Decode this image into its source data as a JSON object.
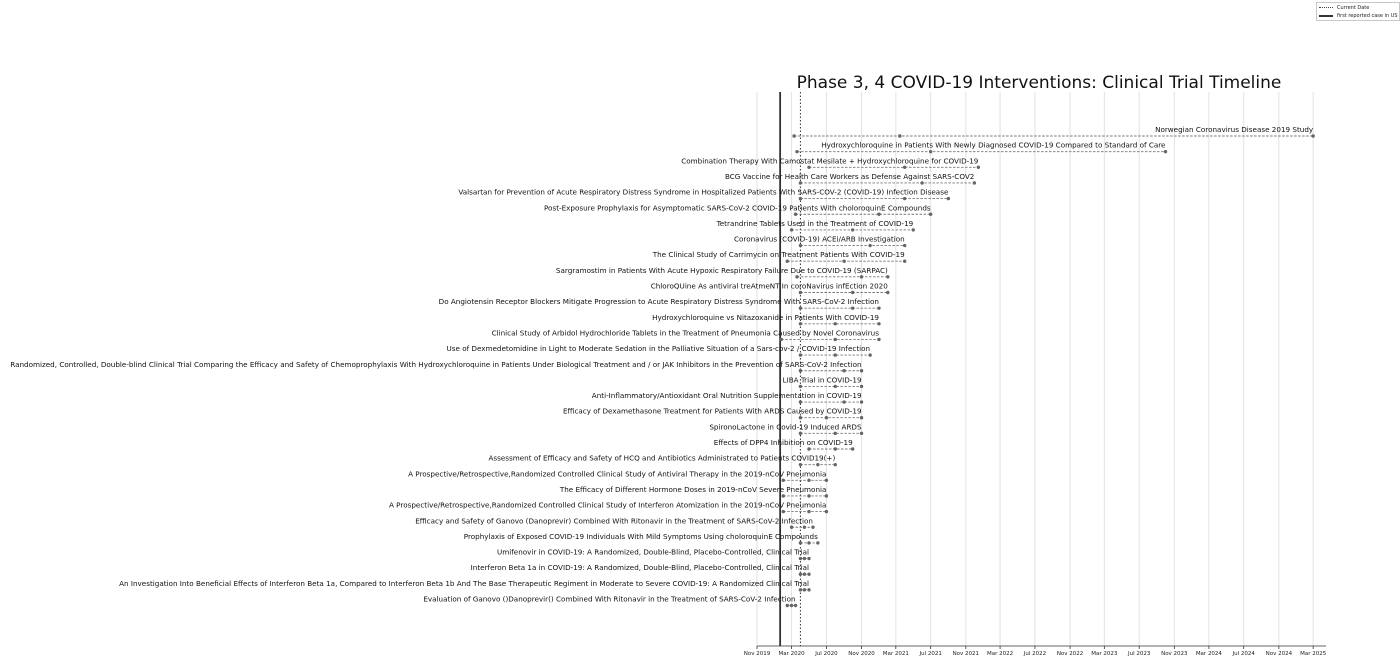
{
  "chart_data": {
    "type": "timeline",
    "title": "Phase 3, 4 COVID-19 Interventions: Clinical Trial Timeline",
    "x_axis": {
      "type": "date",
      "range": [
        "2019-11-01",
        "2025-04-15"
      ],
      "ticks": [
        "Nov 2019",
        "Mar 2020",
        "Jul 2020",
        "Nov 2020",
        "Mar 2021",
        "Jul 2021",
        "Nov 2021",
        "Mar 2022",
        "Jul 2022",
        "Nov 2022",
        "Mar 2023",
        "Jul 2023",
        "Nov 2023",
        "Mar 2024",
        "Jul 2024",
        "Nov 2024",
        "Mar 2025"
      ],
      "grid": true
    },
    "reference_lines": [
      {
        "label": "Current Date",
        "date": "2020-04-01",
        "style": "dotted"
      },
      {
        "label": "first reported case in US",
        "date": "2020-01-21",
        "style": "solid"
      }
    ],
    "legend": {
      "position": "top-right"
    },
    "series": [
      {
        "name": "Norwegian Coronavirus Disease 2019 Study",
        "start": "2020-03-10",
        "mid": "2021-03-15",
        "end": "2025-03-01"
      },
      {
        "name": "Hydroxychloroquine in Patients With Newly Diagnosed COVID-19 Compared to Standard of Care",
        "start": "2020-03-20",
        "mid": "2021-07-01",
        "end": "2023-10-01"
      },
      {
        "name": "Combination Therapy With Camostat Mesilate + Hydroxychloroquine for COVID-19",
        "start": "2020-05-01",
        "mid": "2021-04-01",
        "end": "2021-12-15"
      },
      {
        "name": "BCG Vaccine for Health Care Workers as Defense Against SARS-COV2",
        "start": "2020-04-01",
        "mid": "2021-06-01",
        "end": "2021-12-01"
      },
      {
        "name": "Valsartan for Prevention of Acute Respiratory Distress Syndrome in Hospitalized Patients With SARS-COV-2 (COVID-19) Infection Disease",
        "start": "2020-04-01",
        "mid": "2021-04-01",
        "end": "2021-09-01"
      },
      {
        "name": "Post-Exposure Prophylaxis for Asymptomatic SARS-CoV-2 COVID-19 Patients With choloroquinE Compounds",
        "start": "2020-03-15",
        "mid": "2021-01-01",
        "end": "2021-07-01"
      },
      {
        "name": "Tetrandrine Tablets Used in the Treatment of COVID-19",
        "start": "2020-03-01",
        "mid": "2020-10-01",
        "end": "2021-05-01"
      },
      {
        "name": "Coronavirus (COVID-19) ACEi/ARB Investigation",
        "start": "2020-04-01",
        "mid": "2020-12-01",
        "end": "2021-04-01"
      },
      {
        "name": "The Clinical Study of Carrimycin on Treatment Patients With COVID-19",
        "start": "2020-02-15",
        "mid": "2020-09-01",
        "end": "2021-04-01"
      },
      {
        "name": "Sargramostim in Patients With Acute Hypoxic Respiratory Failure Due to COVID-19 (SARPAC)",
        "start": "2020-03-20",
        "mid": "2020-11-01",
        "end": "2021-02-01"
      },
      {
        "name": "ChloroQUine As antiviral treAtmeNT In coroNavirus infEction 2020",
        "start": "2020-04-01",
        "mid": "2020-10-01",
        "end": "2021-02-01"
      },
      {
        "name": "Do Angiotensin Receptor Blockers Mitigate Progression to Acute Respiratory Distress Syndrome With SARS-CoV-2 Infection",
        "start": "2020-04-01",
        "mid": "2020-10-01",
        "end": "2021-01-01"
      },
      {
        "name": "Hydroxychloroquine vs Nitazoxanide in Patients With COVID-19",
        "start": "2020-04-01",
        "mid": "2020-08-01",
        "end": "2021-01-01"
      },
      {
        "name": "Clinical Study of Arbidol Hydrochloride Tablets in the Treatment of Pneumonia Caused by Novel Coronavirus",
        "start": "2020-01-25",
        "mid": "2020-08-01",
        "end": "2021-01-01"
      },
      {
        "name": "Use of Dexmedetomidine in Light to Moderate Sedation in the Palliative Situation of a Sars-cov-2 / COVID-19 Infection",
        "start": "2020-04-01",
        "mid": "2020-08-01",
        "end": "2020-12-01"
      },
      {
        "name": "Randomized, Controlled, Double-blind Clinical Trial Comparing the Efficacy and Safety of Chemoprophylaxis With Hydroxychloroquine in Patients Under Biological Treatment and / or JAK Inhibitors in the Prevention of SARS-CoV-2 Infection",
        "start": "2020-04-01",
        "mid": "2020-09-01",
        "end": "2020-11-01"
      },
      {
        "name": "LIBA Trial in COVID-19",
        "start": "2020-04-01",
        "mid": "2020-08-01",
        "end": "2020-11-01"
      },
      {
        "name": "Anti-Inflammatory/Antioxidant Oral Nutrition Supplementation in COVID-19",
        "start": "2020-04-01",
        "mid": "2020-09-01",
        "end": "2020-11-01"
      },
      {
        "name": "Efficacy of Dexamethasone Treatment for Patients With ARDS Caused by COVID-19",
        "start": "2020-04-01",
        "mid": "2020-07-01",
        "end": "2020-11-01"
      },
      {
        "name": "SpironoLactone in Covid-19 Induced ARDS",
        "start": "2020-04-01",
        "mid": "2020-08-01",
        "end": "2020-11-01"
      },
      {
        "name": "Effects of DPP4 Inhibition on COVID-19",
        "start": "2020-05-01",
        "mid": "2020-08-01",
        "end": "2020-10-01"
      },
      {
        "name": "Assessment of Efficacy and Safety of HCQ and Antibiotics Administrated to Patients COVID19(+)",
        "start": "2020-04-01",
        "mid": "2020-06-01",
        "end": "2020-08-01"
      },
      {
        "name": "A Prospective/Retrospective,Randomized Controlled Clinical Study of Antiviral Therapy in the 2019-nCoV Pneumonia",
        "start": "2020-02-01",
        "mid": "2020-05-01",
        "end": "2020-07-01"
      },
      {
        "name": "The Efficacy of Different Hormone Doses in 2019-nCoV Severe Pneumonia",
        "start": "2020-02-01",
        "mid": "2020-05-01",
        "end": "2020-07-01"
      },
      {
        "name": "A Prospective/Retrospective,Randomized Controlled Clinical Study of Interferon Atomization in the 2019-nCoV Pneumonia",
        "start": "2020-02-01",
        "mid": "2020-05-01",
        "end": "2020-07-01"
      },
      {
        "name": "Efficacy and Safety of Ganovo (Danoprevir) Combined With Ritonavir in the Treatment of SARS-CoV-2 Infection",
        "start": "2020-03-01",
        "mid": "2020-04-15",
        "end": "2020-05-15"
      },
      {
        "name": "Prophylaxis of Exposed COVID-19 Individuals With Mild Symptoms Using choloroquinE Compounds",
        "start": "2020-04-01",
        "mid": "2020-05-01",
        "end": "2020-06-01"
      },
      {
        "name": "Umifenovir in COVID-19: A Randomized, Double-Blind, Placebo-Controlled, Clinical Trial",
        "start": "2020-04-01",
        "mid": "2020-04-15",
        "end": "2020-05-01"
      },
      {
        "name": "Interferon Beta 1a in COVID-19: A Randomized, Double-Blind, Placebo-Controlled, Clinical Trial",
        "start": "2020-04-01",
        "mid": "2020-04-15",
        "end": "2020-05-01"
      },
      {
        "name": "An Investigation Into Beneficial Effects of Interferon Beta 1a, Compared to Interferon Beta 1b And The Base Therapeutic Regiment in Moderate to Severe COVID-19: A Randomized Clinical Trial",
        "start": "2020-04-01",
        "mid": "2020-04-15",
        "end": "2020-05-01"
      },
      {
        "name": "Evaluation of Ganovo ()Danoprevir() Combined With Ritonavir in the Treatment of SARS-CoV-2 Infection",
        "start": "2020-02-15",
        "mid": "2020-03-01",
        "end": "2020-03-15"
      }
    ]
  }
}
